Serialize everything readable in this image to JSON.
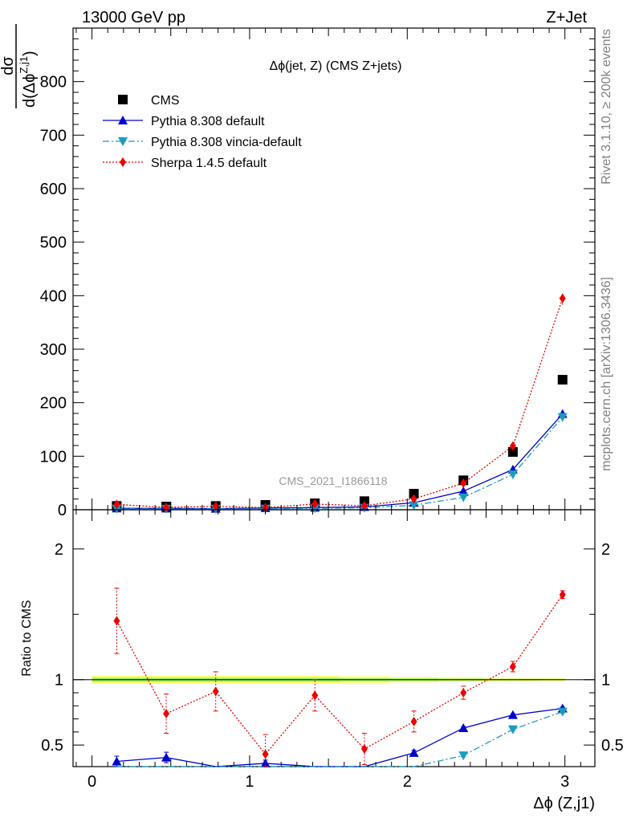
{
  "header": {
    "left": "13000 GeV pp",
    "right": "Z+Jet"
  },
  "side_labels": {
    "rivet": "Rivet 3.1.10, ≥ 200k events",
    "mcplots": "mcplots.cern.ch [arXiv:1306.3436]"
  },
  "watermark": "CMS_2021_I1866118",
  "colors": {
    "cms": "#000000",
    "pythia": "#0000cc",
    "vincia": "#1a9bbf",
    "sherpa": "#ee0000",
    "band_outer": "#ffff66",
    "band_inner": "#99ee66"
  },
  "chart_data": [
    {
      "type": "scatter",
      "title": "Δϕ(jet, Z) (CMS Z+jets)",
      "ylabel_num": "dσ",
      "ylabel_den": "d(Δϕ",
      "ylabel_sup": "Z,j1",
      "ylabel_close": ")",
      "xlim": [
        -0.12,
        3.19
      ],
      "ylim": [
        0,
        900
      ],
      "yticks": [
        0,
        100,
        200,
        300,
        400,
        500,
        600,
        700,
        800
      ],
      "ytick_labels": [
        "0",
        "100",
        "200",
        "300",
        "400",
        "500",
        "600",
        "700",
        "800"
      ],
      "legend_position": "top-left",
      "x": [
        0.157,
        0.471,
        0.785,
        1.1,
        1.414,
        1.728,
        2.042,
        2.356,
        2.67,
        2.985
      ],
      "series": [
        {
          "name": "CMS",
          "style": "square",
          "values": [
            7,
            6,
            7,
            9,
            12,
            16,
            30,
            55,
            108,
            243
          ]
        },
        {
          "name": "Pythia 8.308 default",
          "style": "line-triangle-up",
          "values": [
            2.6,
            2.5,
            2.1,
            3.2,
            4.0,
            5.3,
            13.2,
            34.6,
            75.2,
            179
          ]
        },
        {
          "name": "Pythia 8.308 vincia-default",
          "style": "dashdot-triangle-down",
          "values": [
            1.8,
            1.6,
            1.6,
            1.9,
            2.6,
            3.6,
            8.4,
            23.0,
            66.0,
            173
          ]
        },
        {
          "name": "Sherpa 1.4.5 default",
          "style": "dotted-diamond",
          "values": [
            10,
            4.4,
            6.4,
            3.9,
            10.6,
            7.4,
            20.3,
            49.6,
            119,
            395
          ],
          "err": [
            2,
            1,
            1.5,
            1,
            2,
            1.5,
            3,
            4,
            6,
            12
          ]
        }
      ]
    },
    {
      "type": "scatter",
      "ylabel": "Ratio to CMS",
      "xlabel": "Δϕ (Z,j1)",
      "xlim": [
        -0.12,
        3.19
      ],
      "ylim": [
        0.335,
        2.3
      ],
      "yticks": [
        0.5,
        1,
        2
      ],
      "ytick_labels": [
        "0.5",
        "1",
        "2"
      ],
      "xticks": [
        0,
        1,
        2,
        3
      ],
      "xtick_labels": [
        "0",
        "1",
        "2",
        "3"
      ],
      "x": [
        0.157,
        0.471,
        0.785,
        1.1,
        1.414,
        1.728,
        2.042,
        2.356,
        2.67,
        2.985
      ],
      "series": [
        {
          "name": "Pythia 8.308 default",
          "values": [
            0.375,
            0.405,
            0.31,
            0.36,
            0.3,
            0.3,
            0.44,
            0.63,
            0.73,
            0.78
          ],
          "err": [
            0.04,
            0.04,
            0.03,
            0.025,
            0.02,
            0.02,
            0.02,
            0.01,
            0.01,
            0.01
          ]
        },
        {
          "name": "Pythia 8.308 vincia-default",
          "values": [
            0.25,
            0.25,
            0.25,
            0.25,
            0.25,
            0.25,
            0.28,
            0.42,
            0.62,
            0.755
          ],
          "err": [
            0.03,
            0.03,
            0.03,
            0.03,
            0.03,
            0.03,
            0.02,
            0.01,
            0.01,
            0.01
          ]
        },
        {
          "name": "Sherpa 1.4.5 default",
          "values": [
            1.45,
            0.74,
            0.91,
            0.43,
            0.88,
            0.47,
            0.68,
            0.9,
            1.1,
            1.65
          ],
          "err": [
            0.25,
            0.15,
            0.15,
            0.15,
            0.12,
            0.12,
            0.08,
            0.05,
            0.04,
            0.03
          ]
        }
      ],
      "band": {
        "outer": [
          0.03,
          0.03,
          0.03,
          0.03,
          0.03,
          0.025,
          0.02,
          0.015,
          0.012,
          0.01
        ],
        "inner": [
          0.015,
          0.015,
          0.015,
          0.015,
          0.015,
          0.012,
          0.01,
          0.008,
          0.006,
          0.005
        ]
      }
    }
  ]
}
